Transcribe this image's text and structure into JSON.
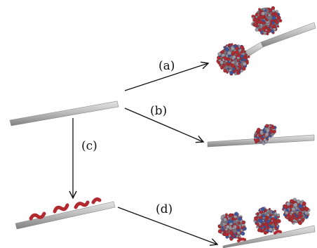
{
  "labels": {
    "a": "(a)",
    "b": "(b)",
    "c": "(c)",
    "d": "(d)"
  },
  "colors": {
    "rod_light": "#d6d6d6",
    "rod_mid": "#a8a8a8",
    "rod_dark": "#7d7d7d",
    "cluster_red": "#b02a30",
    "cluster_gray": "#9a9aa6",
    "cluster_blue": "#3b56a0",
    "arrow": "#111111"
  },
  "icons": {
    "rod": "nanotube-rod-icon",
    "protein": "protein-cluster-icon",
    "linker": "red-linker-molecule-icon"
  }
}
